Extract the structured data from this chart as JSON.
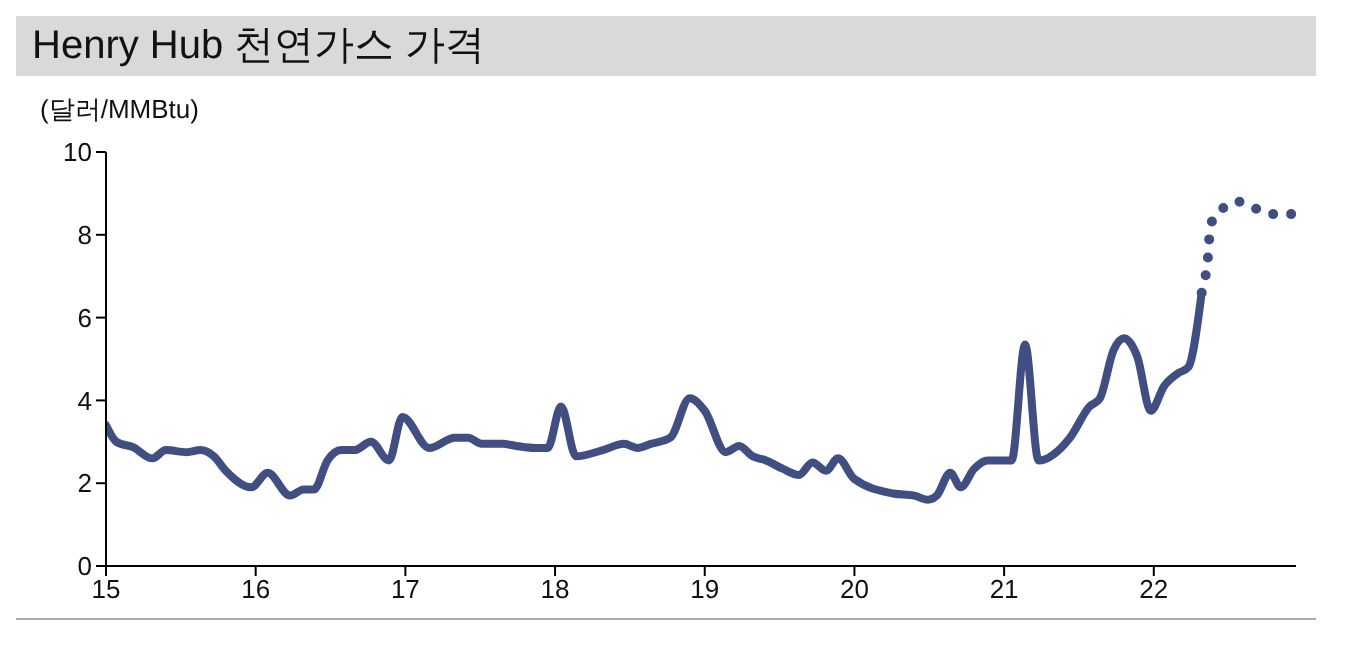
{
  "chart_data": {
    "type": "line",
    "title": "Henry Hub 천연가스 가격",
    "ylabel": "(달러/MMBtu)",
    "xlim": [
      15,
      22.95
    ],
    "xticks": [
      15,
      16,
      17,
      18,
      19,
      20,
      21,
      22
    ],
    "ylim": [
      0,
      10
    ],
    "yticks": [
      0,
      2,
      4,
      6,
      8,
      10
    ],
    "marker": "none",
    "series": [
      {
        "color": "#404e82",
        "line_style": "solid",
        "x": [
          15.0,
          15.07,
          15.18,
          15.31,
          15.4,
          15.54,
          15.63,
          15.72,
          15.8,
          15.97,
          16.08,
          16.23,
          16.32,
          16.39,
          16.48,
          16.57,
          16.66,
          16.77,
          16.89,
          16.98,
          17.16,
          17.33,
          17.42,
          17.51,
          17.65,
          17.74,
          17.87,
          17.95,
          18.04,
          18.14,
          18.32,
          18.46,
          18.55,
          18.64,
          18.77,
          18.9,
          19.0,
          19.14,
          19.23,
          19.32,
          19.41,
          19.52,
          19.63,
          19.72,
          19.81,
          19.89,
          20.0,
          20.26,
          20.4,
          20.49,
          20.55,
          20.64,
          20.71,
          20.8,
          20.89,
          21.05,
          21.14,
          21.23,
          21.44,
          21.57,
          21.64,
          21.73,
          21.8,
          21.89,
          21.98,
          22.07,
          22.16,
          22.23,
          22.32
        ],
        "values": [
          3.4,
          3.0,
          2.87,
          2.6,
          2.8,
          2.75,
          2.8,
          2.65,
          2.3,
          1.9,
          2.25,
          1.7,
          1.85,
          1.85,
          2.55,
          2.8,
          2.8,
          3.0,
          2.55,
          3.6,
          2.85,
          3.1,
          3.1,
          2.95,
          2.95,
          2.9,
          2.85,
          2.85,
          3.85,
          2.65,
          2.8,
          2.95,
          2.85,
          2.95,
          3.1,
          4.05,
          3.75,
          2.75,
          2.9,
          2.65,
          2.55,
          2.35,
          2.2,
          2.5,
          2.3,
          2.6,
          2.1,
          1.75,
          1.7,
          1.6,
          1.7,
          2.25,
          1.9,
          2.35,
          2.55,
          2.55,
          5.35,
          2.55,
          3.1,
          3.85,
          4.05,
          5.2,
          5.5,
          5.05,
          3.75,
          4.35,
          4.65,
          4.8,
          6.6
        ]
      },
      {
        "color": "#404e82",
        "line_style": "dotted",
        "x": [
          22.32,
          22.36,
          22.38,
          22.45,
          22.56,
          22.67,
          22.79,
          22.92
        ],
        "values": [
          6.6,
          7.4,
          8.25,
          8.6,
          8.8,
          8.65,
          8.5,
          8.5
        ]
      }
    ]
  }
}
